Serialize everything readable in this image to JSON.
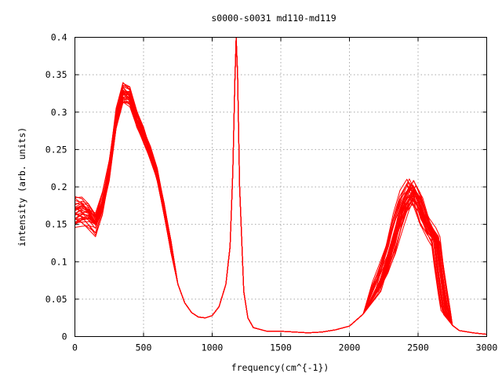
{
  "chart_data": {
    "type": "line",
    "title": "s0000-s0031 md110-md119",
    "xlabel": "frequency(cm^{-1})",
    "ylabel": "intensity (arb. units)",
    "xlim": [
      0,
      3000
    ],
    "ylim": [
      0,
      0.4
    ],
    "grid": true,
    "legend": "none",
    "x_ticks": [
      "0",
      "500",
      "1000",
      "1500",
      "2000",
      "2500",
      "3000"
    ],
    "y_ticks": [
      "0",
      "0.05",
      "0.1",
      "0.15",
      "0.2",
      "0.25",
      "0.3",
      "0.35",
      "0.4"
    ],
    "series_color": "#ff0000",
    "series_count": 32,
    "x": [
      0,
      50,
      100,
      150,
      200,
      250,
      300,
      350,
      400,
      450,
      500,
      550,
      600,
      650,
      700,
      750,
      800,
      850,
      900,
      950,
      1000,
      1050,
      1100,
      1130,
      1150,
      1165,
      1175,
      1185,
      1200,
      1230,
      1260,
      1300,
      1400,
      1500,
      1600,
      1700,
      1800,
      1900,
      2000,
      2100,
      2200,
      2250,
      2300,
      2350,
      2400,
      2450,
      2500,
      2550,
      2600,
      2630,
      2650,
      2680,
      2700,
      2750,
      2800,
      2900,
      3000
    ],
    "y_representative": [
      0.165,
      0.165,
      0.16,
      0.15,
      0.175,
      0.22,
      0.29,
      0.325,
      0.32,
      0.29,
      0.27,
      0.245,
      0.215,
      0.17,
      0.12,
      0.07,
      0.045,
      0.032,
      0.026,
      0.025,
      0.028,
      0.04,
      0.07,
      0.12,
      0.22,
      0.34,
      0.4,
      0.35,
      0.2,
      0.06,
      0.025,
      0.012,
      0.007,
      0.007,
      0.006,
      0.005,
      0.006,
      0.009,
      0.014,
      0.03,
      0.065,
      0.09,
      0.12,
      0.155,
      0.18,
      0.195,
      0.18,
      0.155,
      0.14,
      0.13,
      0.1,
      0.06,
      0.035,
      0.015,
      0.008,
      0.005,
      0.003
    ]
  }
}
